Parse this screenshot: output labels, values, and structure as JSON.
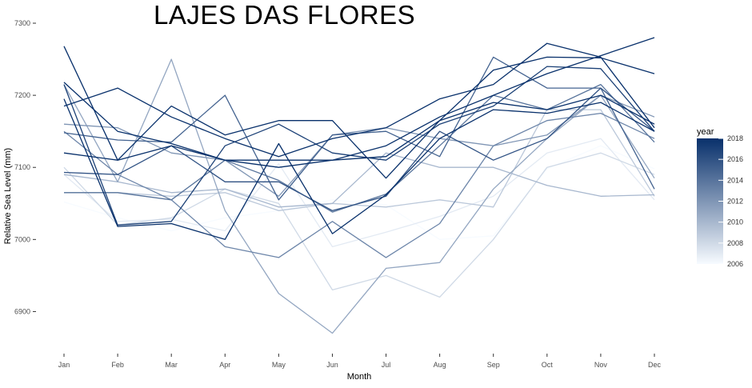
{
  "chart_data": {
    "type": "line",
    "title": "LAJES DAS FLORES",
    "xlabel": "Month",
    "ylabel": "Relative Sea Level (mm)",
    "ylim": [
      6855,
      7310
    ],
    "yticks": [
      6900,
      7000,
      7100,
      7200,
      7300
    ],
    "categories": [
      "Jan",
      "Feb",
      "Mar",
      "Apr",
      "May",
      "Jun",
      "Jul",
      "Aug",
      "Sep",
      "Oct",
      "Nov",
      "Dec"
    ],
    "grid": false,
    "legend": {
      "title": "year",
      "position": "right",
      "ticks": [
        "2018",
        "2016",
        "2014",
        "2012",
        "2010",
        "2008",
        "2006"
      ],
      "range": [
        2006,
        2018
      ],
      "color_low": "#f7fbff",
      "color_high": "#08306b"
    },
    "series": [
      {
        "year": 2006,
        "values": [
          7052,
          7030,
          7012,
          7030,
          7040,
          7055,
          7048,
          7000,
          7005,
          7098,
          7130,
          7098
        ]
      },
      {
        "year": 2007,
        "values": [
          7090,
          7025,
          7028,
          7012,
          7105,
          6990,
          7010,
          7032,
          7060,
          7120,
          7140,
          7055
        ]
      },
      {
        "year": 2008,
        "values": [
          7100,
          7020,
          7030,
          7070,
          7050,
          6930,
          6950,
          6920,
          7000,
          7100,
          7120,
          7090
        ]
      },
      {
        "year": 2009,
        "values": [
          7065,
          7065,
          7060,
          7065,
          7040,
          7050,
          7045,
          7055,
          7045,
          7180,
          7180,
          7060
        ]
      },
      {
        "year": 2010,
        "values": [
          7090,
          7080,
          7065,
          7070,
          7045,
          7050,
          7120,
          7100,
          7100,
          7075,
          7060,
          7062
        ]
      },
      {
        "year": 2011,
        "values": [
          7215,
          7080,
          7250,
          7040,
          6925,
          6870,
          6960,
          6968,
          7070,
          7140,
          7200,
          7085
        ]
      },
      {
        "year": 2012,
        "values": [
          7160,
          7155,
          7120,
          7110,
          7060,
          7145,
          7155,
          7140,
          7130,
          7145,
          7200,
          7170
        ]
      },
      {
        "year": 2013,
        "values": [
          7150,
          7090,
          7055,
          6990,
          6975,
          7025,
          6975,
          7022,
          7130,
          7165,
          7175,
          7140
        ]
      },
      {
        "year": 2014,
        "values": [
          7065,
          7065,
          7055,
          7110,
          7082,
          7038,
          7063,
          7130,
          7200,
          7180,
          7215,
          7135
        ]
      },
      {
        "year": 2015,
        "values": [
          7148,
          7138,
          7135,
          7200,
          7055,
          7145,
          7150,
          7115,
          7253,
          7210,
          7210,
          7070
        ]
      },
      {
        "year": 2016,
        "values": [
          7093,
          7090,
          7130,
          7080,
          7080,
          7040,
          7060,
          7150,
          7110,
          7140,
          7210,
          7150
        ]
      },
      {
        "year": 2017,
        "values": [
          7215,
          7020,
          7025,
          7130,
          7160,
          7120,
          7110,
          7160,
          7185,
          7240,
          7237,
          7150
        ]
      },
      {
        "year": 2018,
        "values": [
          7195,
          7018,
          7022,
          7000,
          7133,
          7008,
          7062,
          7140,
          7180,
          7175,
          7190,
          7150
        ]
      },
      {
        "year": 2018,
        "values": [
          7185,
          7210,
          7170,
          7140,
          7115,
          7140,
          7155,
          7195,
          7215,
          7272,
          7253,
          7155
        ]
      },
      {
        "year": 2018,
        "values": [
          7268,
          7110,
          7185,
          7145,
          7165,
          7165,
          7085,
          7165,
          7235,
          7253,
          7252,
          7230
        ]
      },
      {
        "year": 2018,
        "values": [
          7218,
          7150,
          7133,
          7110,
          7110,
          7110,
          7115,
          7165,
          7190,
          7180,
          7200,
          7160
        ]
      },
      {
        "year": 2018,
        "values": [
          7120,
          7110,
          7130,
          7110,
          7100,
          7110,
          7130,
          7170,
          7200,
          7230,
          7255,
          7280
        ]
      }
    ]
  }
}
